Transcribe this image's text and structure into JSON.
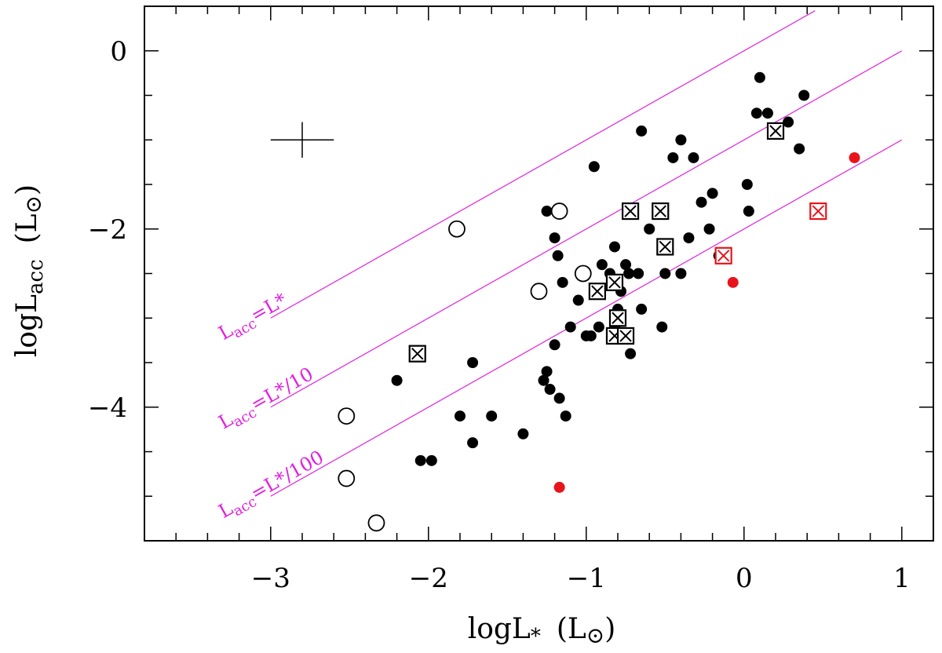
{
  "chart_data": {
    "type": "scatter",
    "title": "",
    "xlabel_main": "logL",
    "xlabel_sub": "*",
    "xlabel_unit": "(L",
    "xlabel_sun": "⊙",
    "xlabel_close": ")",
    "ylabel_main": "logL",
    "ylabel_sub": "acc",
    "ylabel_unit": "(L",
    "ylabel_sun": "⊙",
    "ylabel_close": ")",
    "xlim": [
      -3.8,
      1.2
    ],
    "ylim": [
      -5.5,
      0.5
    ],
    "x_ticks": [
      -3,
      -2,
      -1,
      0,
      1
    ],
    "x_tick_labels": [
      "−3",
      "−2",
      "−1",
      "0",
      "1"
    ],
    "x_minor_step": 0.2,
    "y_ticks": [
      0,
      -2,
      -4
    ],
    "y_tick_labels": [
      "0",
      "−2",
      "−4"
    ],
    "y_minor_step": 0.5,
    "grid": false,
    "colors": {
      "black": "#000000",
      "red": "#e8141c",
      "magenta": "#e020e0"
    },
    "reference_lines": [
      {
        "name": "Lacc=L*",
        "offset": 0,
        "x_range": [
          -3,
          0.45
        ],
        "label_main": "L",
        "label_sub": "acc",
        "label_rest": "=L*",
        "label_x": -3.3,
        "label_y": -3.25
      },
      {
        "name": "Lacc=L*/10",
        "offset": -1,
        "x_range": [
          -3,
          1
        ],
        "label_main": "L",
        "label_sub": "acc",
        "label_rest": "=L*/10",
        "label_x": -3.3,
        "label_y": -4.25
      },
      {
        "name": "Lacc=L*/100",
        "offset": -2,
        "x_range": [
          -3,
          1
        ],
        "label_main": "L",
        "label_sub": "acc",
        "label_rest": "=L*/100",
        "label_x": -3.3,
        "label_y": -5.25
      }
    ],
    "error_bar": {
      "x": -2.8,
      "y": -1.0,
      "dx": 0.2,
      "dy": 0.2
    },
    "series": [
      {
        "name": "filled-black",
        "marker": "filled-circle",
        "color": "#000000",
        "points": [
          [
            0.1,
            -0.3
          ],
          [
            0.15,
            -0.7
          ],
          [
            0.08,
            -0.7
          ],
          [
            0.38,
            -0.5
          ],
          [
            0.28,
            -0.8
          ],
          [
            0.35,
            -1.1
          ],
          [
            -0.65,
            -0.9
          ],
          [
            -0.95,
            -1.3
          ],
          [
            -0.4,
            -1.0
          ],
          [
            -0.45,
            -1.2
          ],
          [
            -0.32,
            -1.2
          ],
          [
            0.02,
            -1.5
          ],
          [
            -0.2,
            -1.6
          ],
          [
            -0.27,
            -1.7
          ],
          [
            0.03,
            -1.8
          ],
          [
            -0.7,
            -1.8
          ],
          [
            -0.6,
            -2.0
          ],
          [
            -0.5,
            -2.2
          ],
          [
            -0.35,
            -2.1
          ],
          [
            -0.22,
            -2.0
          ],
          [
            -0.16,
            -2.3
          ],
          [
            -0.5,
            -2.5
          ],
          [
            -0.4,
            -2.5
          ],
          [
            -0.67,
            -2.5
          ],
          [
            -0.75,
            -2.4
          ],
          [
            -0.82,
            -2.2
          ],
          [
            -0.9,
            -2.4
          ],
          [
            -0.78,
            -2.7
          ],
          [
            -0.65,
            -2.9
          ],
          [
            -0.52,
            -3.1
          ],
          [
            -0.72,
            -3.4
          ],
          [
            -0.8,
            -2.9
          ],
          [
            -0.82,
            -3.1
          ],
          [
            -0.92,
            -3.1
          ],
          [
            -0.97,
            -3.2
          ],
          [
            -1.0,
            -3.2
          ],
          [
            -1.05,
            -2.8
          ],
          [
            -1.1,
            -3.1
          ],
          [
            -1.15,
            -2.6
          ],
          [
            -1.18,
            -2.3
          ],
          [
            -1.2,
            -2.1
          ],
          [
            -1.25,
            -1.8
          ],
          [
            -1.2,
            -3.3
          ],
          [
            -1.25,
            -3.6
          ],
          [
            -1.27,
            -3.7
          ],
          [
            -1.23,
            -3.8
          ],
          [
            -1.17,
            -3.9
          ],
          [
            -1.13,
            -4.1
          ],
          [
            -1.4,
            -4.3
          ],
          [
            -1.6,
            -4.1
          ],
          [
            -1.8,
            -4.1
          ],
          [
            -1.72,
            -3.5
          ],
          [
            -1.72,
            -4.4
          ],
          [
            -2.05,
            -4.6
          ],
          [
            -1.98,
            -4.6
          ],
          [
            -2.2,
            -3.7
          ],
          [
            -0.85,
            -2.5
          ],
          [
            -0.73,
            -2.5
          ]
        ]
      },
      {
        "name": "filled-red",
        "marker": "filled-circle",
        "color": "#e8141c",
        "points": [
          [
            0.7,
            -1.2
          ],
          [
            -0.07,
            -2.6
          ],
          [
            -1.17,
            -4.9
          ]
        ]
      },
      {
        "name": "open-circles",
        "marker": "open-circle",
        "color": "#000000",
        "points": [
          [
            -1.17,
            -1.8
          ],
          [
            -1.82,
            -2.0
          ],
          [
            -1.02,
            -2.5
          ],
          [
            -1.3,
            -2.7
          ],
          [
            -2.52,
            -4.1
          ],
          [
            -2.52,
            -4.8
          ],
          [
            -2.33,
            -5.3
          ]
        ]
      },
      {
        "name": "boxed-x-black",
        "marker": "boxed-x",
        "color": "#000000",
        "points": [
          [
            0.2,
            -0.9
          ],
          [
            -0.72,
            -1.8
          ],
          [
            -0.53,
            -1.8
          ],
          [
            -0.5,
            -2.2
          ],
          [
            -0.93,
            -2.7
          ],
          [
            -0.82,
            -2.6
          ],
          [
            -0.8,
            -3.0
          ],
          [
            -0.82,
            -3.2
          ],
          [
            -0.75,
            -3.2
          ],
          [
            -2.07,
            -3.4
          ]
        ]
      },
      {
        "name": "boxed-x-red",
        "marker": "boxed-x",
        "color": "#e8141c",
        "points": [
          [
            0.47,
            -1.8
          ],
          [
            -0.13,
            -2.3
          ]
        ]
      }
    ]
  }
}
